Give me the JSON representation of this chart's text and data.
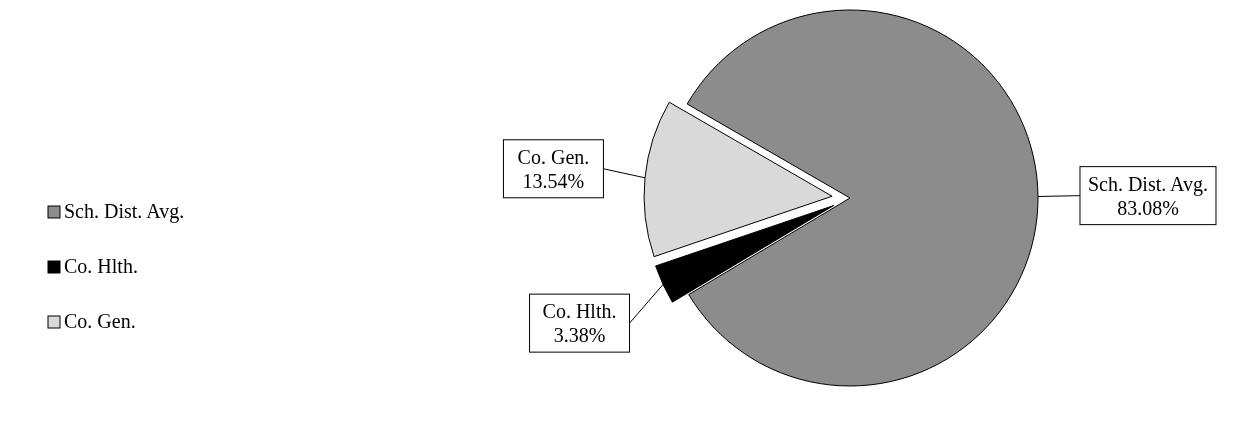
{
  "chart_data": {
    "type": "pie",
    "categories": [
      "Sch. Dist. Avg.",
      "Co. Hlth.",
      "Co. Gen."
    ],
    "values": [
      83.08,
      3.38,
      13.54
    ],
    "value_labels": [
      "83.08%",
      "3.38%",
      "13.54%"
    ],
    "colors": [
      "#8c8c8c",
      "#000000",
      "#d9d9d9"
    ],
    "legend": "left"
  }
}
